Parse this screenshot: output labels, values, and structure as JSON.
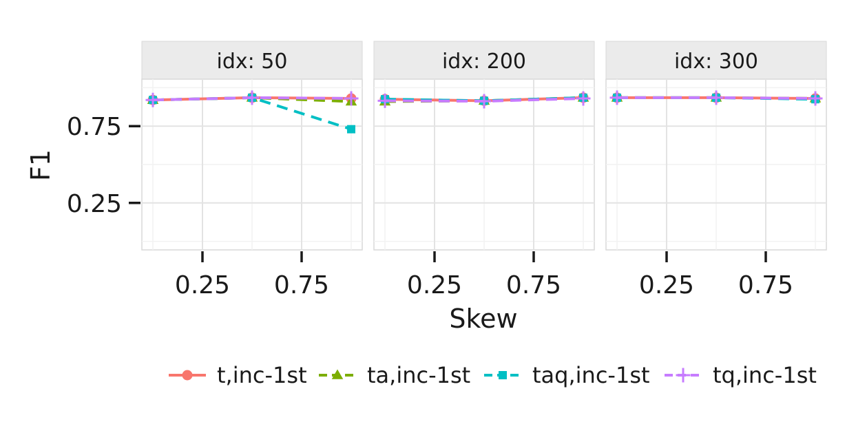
{
  "chart_data": {
    "type": "line",
    "xlabel": "Skew",
    "ylabel": "F1",
    "xlim": [
      0.0,
      1.0
    ],
    "ylim": [
      0.0,
      1.0
    ],
    "x_ticks": [
      0.25,
      0.75
    ],
    "x_tick_labels": [
      "0.25",
      "0.75"
    ],
    "y_ticks": [
      0.25,
      0.75
    ],
    "y_tick_labels": [
      "0.25",
      "0.75"
    ],
    "grid": true,
    "legend_position": "bottom",
    "panels": [
      {
        "strip": "idx: 50",
        "series": [
          {
            "name": "t,inc-1st",
            "x": [
              0.0,
              0.5,
              1.0
            ],
            "y": [
              0.92,
              0.935,
              0.93
            ]
          },
          {
            "name": "ta,inc-1st",
            "x": [
              0.0,
              0.5,
              1.0
            ],
            "y": [
              0.92,
              0.935,
              0.91
            ]
          },
          {
            "name": "taq,inc-1st",
            "x": [
              0.0,
              0.5,
              1.0
            ],
            "y": [
              0.92,
              0.935,
              0.73
            ]
          },
          {
            "name": "tq,inc-1st",
            "x": [
              0.0,
              0.5,
              1.0
            ],
            "y": [
              0.92,
              0.935,
              0.93
            ]
          }
        ]
      },
      {
        "strip": "idx: 200",
        "series": [
          {
            "name": "t,inc-1st",
            "x": [
              0.0,
              0.5,
              1.0
            ],
            "y": [
              0.925,
              0.915,
              0.935
            ]
          },
          {
            "name": "ta,inc-1st",
            "x": [
              0.0,
              0.5,
              1.0
            ],
            "y": [
              0.91,
              0.915,
              0.935
            ]
          },
          {
            "name": "taq,inc-1st",
            "x": [
              0.0,
              0.5,
              1.0
            ],
            "y": [
              0.925,
              0.915,
              0.935
            ]
          },
          {
            "name": "tq,inc-1st",
            "x": [
              0.0,
              0.5,
              1.0
            ],
            "y": [
              0.915,
              0.912,
              0.93
            ]
          }
        ]
      },
      {
        "strip": "idx: 300",
        "series": [
          {
            "name": "t,inc-1st",
            "x": [
              0.0,
              0.5,
              1.0
            ],
            "y": [
              0.935,
              0.935,
              0.93
            ]
          },
          {
            "name": "ta,inc-1st",
            "x": [
              0.0,
              0.5,
              1.0
            ],
            "y": [
              0.935,
              0.935,
              0.93
            ]
          },
          {
            "name": "taq,inc-1st",
            "x": [
              0.0,
              0.5,
              1.0
            ],
            "y": [
              0.935,
              0.935,
              0.925
            ]
          },
          {
            "name": "tq,inc-1st",
            "x": [
              0.0,
              0.5,
              1.0
            ],
            "y": [
              0.935,
              0.935,
              0.93
            ]
          }
        ]
      }
    ],
    "legend": [
      {
        "name": "t,inc-1st",
        "color": "#F8766D",
        "shape": "circle",
        "dash": "solid"
      },
      {
        "name": "ta,inc-1st",
        "color": "#7CAE00",
        "shape": "triangle",
        "dash": "dashed"
      },
      {
        "name": "taq,inc-1st",
        "color": "#00BFC4",
        "shape": "square",
        "dash": "dashed"
      },
      {
        "name": "tq,inc-1st",
        "color": "#C77CFF",
        "shape": "plus",
        "dash": "dashed"
      }
    ]
  }
}
